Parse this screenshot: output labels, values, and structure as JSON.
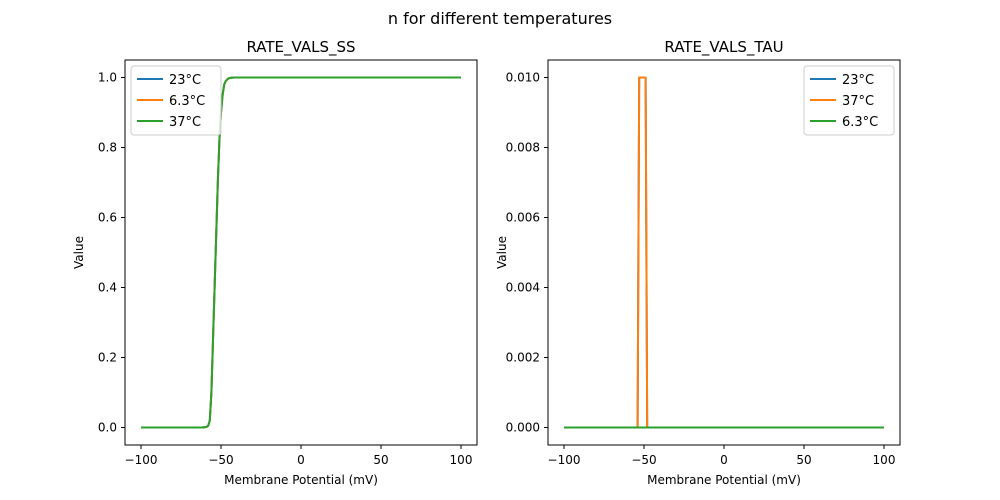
{
  "figure": {
    "suptitle": "n for different temperatures"
  },
  "chart_data": [
    {
      "type": "line",
      "title": "RATE_VALS_SS",
      "xlabel": "Membrane Potential (mV)",
      "ylabel": "Value",
      "xlim": [
        -110,
        110
      ],
      "ylim": [
        -0.05,
        1.05
      ],
      "xticks": [
        -100,
        -50,
        0,
        50,
        100
      ],
      "yticks": [
        0.0,
        0.2,
        0.4,
        0.6,
        0.8,
        1.0
      ],
      "ytick_labels": [
        "0.0",
        "0.2",
        "0.4",
        "0.6",
        "0.8",
        "1.0"
      ],
      "grid": false,
      "legend_position": "upper-left",
      "x": [
        -100,
        -70,
        -62,
        -60,
        -59,
        -58,
        -57,
        -56,
        -55,
        -54,
        -53,
        -52,
        -51,
        -50,
        -49,
        -48,
        -47,
        -46,
        -45,
        -44,
        -42,
        -40,
        -30,
        0,
        50,
        100
      ],
      "series": [
        {
          "name": "23°C",
          "color": "#1f77b4",
          "values": [
            0,
            0,
            0,
            0.001,
            0.002,
            0.005,
            0.02,
            0.1,
            0.25,
            0.4,
            0.55,
            0.7,
            0.82,
            0.9,
            0.95,
            0.98,
            0.99,
            0.995,
            0.998,
            0.999,
            1,
            1,
            1,
            1,
            1,
            1
          ]
        },
        {
          "name": "6.3°C",
          "color": "#ff7f0e",
          "values": [
            0,
            0,
            0,
            0.001,
            0.002,
            0.005,
            0.02,
            0.1,
            0.25,
            0.4,
            0.55,
            0.7,
            0.82,
            0.9,
            0.95,
            0.98,
            0.99,
            0.995,
            0.998,
            0.999,
            1,
            1,
            1,
            1,
            1,
            1
          ]
        },
        {
          "name": "37°C",
          "color": "#2ca02c",
          "values": [
            0,
            0,
            0,
            0.001,
            0.002,
            0.005,
            0.02,
            0.1,
            0.25,
            0.4,
            0.55,
            0.7,
            0.82,
            0.9,
            0.95,
            0.98,
            0.99,
            0.995,
            0.998,
            0.999,
            1,
            1,
            1,
            1,
            1,
            1
          ]
        }
      ]
    },
    {
      "type": "line",
      "title": "RATE_VALS_TAU",
      "xlabel": "Membrane Potential (mV)",
      "ylabel": "Value",
      "xlim": [
        -110,
        110
      ],
      "ylim": [
        -0.0005,
        0.0105
      ],
      "xticks": [
        -100,
        -50,
        0,
        50,
        100
      ],
      "yticks": [
        0.0,
        0.002,
        0.004,
        0.006,
        0.008,
        0.01
      ],
      "ytick_labels": [
        "0.000",
        "0.002",
        "0.004",
        "0.006",
        "0.008",
        "0.010"
      ],
      "grid": false,
      "legend_position": "upper-right",
      "x": [
        -100,
        -54,
        -53,
        -52,
        -50,
        -49,
        -48,
        100
      ],
      "series": [
        {
          "name": "23°C",
          "color": "#1f77b4",
          "values": [
            0,
            0,
            0.01,
            0.01,
            0.01,
            0.01,
            0,
            0
          ]
        },
        {
          "name": "37°C",
          "color": "#ff7f0e",
          "values": [
            0,
            0,
            0.01,
            0.01,
            0.01,
            0.01,
            0,
            0
          ]
        },
        {
          "name": "6.3°C",
          "color": "#2ca02c",
          "values": [
            0,
            0,
            0,
            0,
            0,
            0,
            0,
            0
          ]
        }
      ]
    }
  ]
}
